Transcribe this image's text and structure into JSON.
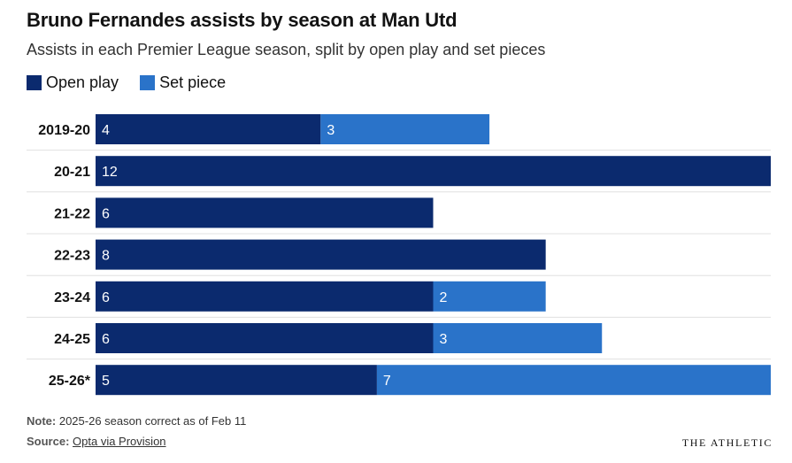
{
  "chart_data": {
    "type": "bar",
    "orientation": "horizontal",
    "stacked": true,
    "title": "Bruno Fernandes assists by season at Man Utd",
    "subtitle": "Assists in each Premier League season, split by open play and set pieces",
    "categories": [
      "2019-20",
      "20-21",
      "21-22",
      "22-23",
      "23-24",
      "24-25",
      "25-26*"
    ],
    "series": [
      {
        "name": "Open play",
        "color": "#0b2a6e",
        "values": [
          4,
          12,
          6,
          8,
          6,
          6,
          5
        ]
      },
      {
        "name": "Set piece",
        "color": "#2a73c9",
        "values": [
          3,
          0,
          0,
          0,
          2,
          3,
          7
        ]
      }
    ],
    "xlim": [
      0,
      12
    ],
    "legend_position": "top-left",
    "grid": false
  },
  "footer": {
    "note_label": "Note:",
    "note_text": "2025-26 season correct as of Feb 11",
    "source_label": "Source:",
    "source_text": "Opta via Provision",
    "brand": "THE ATHLETIC"
  }
}
